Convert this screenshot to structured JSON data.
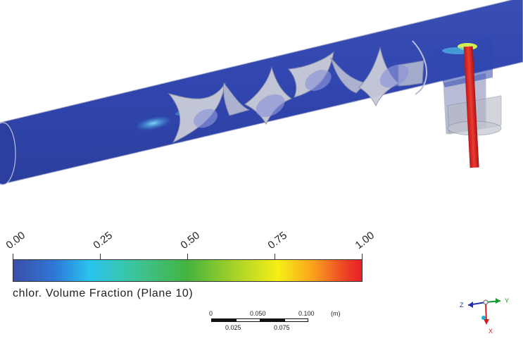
{
  "legend": {
    "ticks": [
      "0.00",
      "0.25",
      "0.50",
      "0.75",
      "1.00"
    ],
    "variable_title": "chlor. Volume Fraction (Plane 10)",
    "colors": [
      "#3b4ea9",
      "#28c4ee",
      "#43b33e",
      "#f6ef17",
      "#e8202a"
    ]
  },
  "scale_bar": {
    "top_labels": [
      "0",
      "0.050",
      "0.100"
    ],
    "bottom_labels": [
      "0.025",
      "0.075"
    ],
    "unit": "(m)"
  },
  "axes_triad": {
    "z_label": "Z",
    "y_label": "Y",
    "x_label": "X",
    "z_color": "#2233aa",
    "y_color": "#129a2c",
    "x_color": "#d41e1e"
  }
}
